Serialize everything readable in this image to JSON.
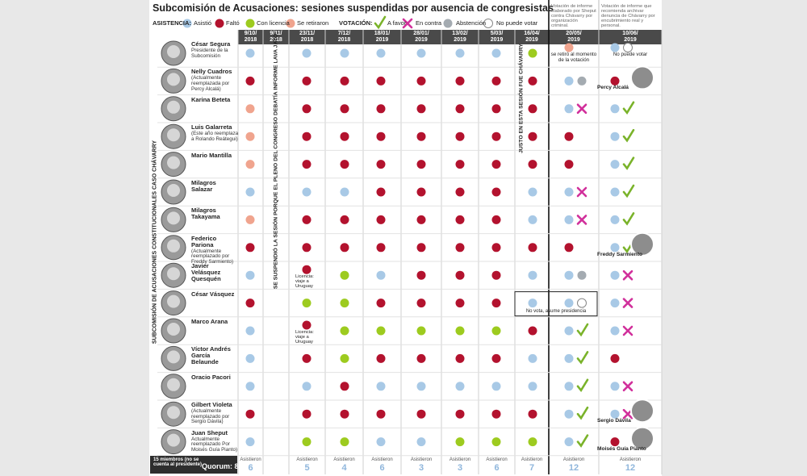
{
  "header": {
    "title": "Subcomisión de Acusaciones: sesiones suspendidas por ausencia de congresistas"
  },
  "legend": {
    "attendance_title": "ASISTENCIA:",
    "attendance": [
      {
        "label": "Asistió",
        "color": "#a8c9e6"
      },
      {
        "label": "Faltó",
        "color": "#b3122e"
      },
      {
        "label": "Con licencia",
        "color": "#9dcb1f"
      },
      {
        "label": "Se retiraron",
        "color": "#f0a48e"
      }
    ],
    "vote_title": "VOTACIÓN:",
    "vote": [
      {
        "label": "A favor",
        "color": "#7ab32a"
      },
      {
        "label": "En contra",
        "color": "#d1309b"
      },
      {
        "label": "Abstención",
        "color": "#a4abb1"
      },
      {
        "label": "No puede votar",
        "color": "#ffffff"
      }
    ]
  },
  "side_label": "SUBCOMISIÓN DE ACUSACIONES CONSTITUCIONALES CASO CHÁVARRY",
  "columns": [
    {
      "date": [
        "9/10/",
        "2018"
      ],
      "attended_label": "Asistieron",
      "attended": 6
    },
    {
      "date": [
        "9/11/",
        "2018"
      ],
      "note": "SE SUSPENDIÓ LA SESIÓN PORQUE EL PLENO DEL CONGRESO DEBATÍA INFORME LAVA JATO"
    },
    {
      "date": [
        "23/11/",
        "2018"
      ],
      "attended_label": "Asistieron",
      "attended": 5
    },
    {
      "date": [
        "7/12/",
        "2018"
      ],
      "attended_label": "Asistieron",
      "attended": 4
    },
    {
      "date": [
        "18/01/",
        "2019"
      ],
      "attended_label": "Asistieron",
      "attended": 6
    },
    {
      "date": [
        "28/01/",
        "2019"
      ],
      "attended_label": "Asistieron",
      "attended": 3
    },
    {
      "date": [
        "13/02/",
        "2019"
      ],
      "attended_label": "Asistieron",
      "attended": 3
    },
    {
      "date": [
        "5/03/",
        "2019"
      ],
      "attended_label": "Asistieron",
      "attended": 6
    },
    {
      "date": [
        "16/04/",
        "2019"
      ],
      "note": "JUSTO EN ESTA SESIÓN FUE CHÁVARRY",
      "attended_label": "Asistieron",
      "attended": 7
    },
    {
      "date": [
        "20/05/",
        "2019"
      ],
      "vote_note": "Votación de informe elaborado por Sheput contra Chávarry por organización criminal.",
      "attended_label": "Asistieron",
      "attended": 12
    },
    {
      "date": [
        "10/06/",
        "2019"
      ],
      "vote_note": "Votación de informe que recomienda archivar denuncia de Chávarry por encubrimiento real y personal.",
      "attended_label": "Asistieron",
      "attended": 12
    }
  ],
  "members": [
    {
      "name": "César Segura",
      "note": "Presidente de la Subcomisión",
      "attendance": [
        0,
        null,
        0,
        0,
        0,
        0,
        0,
        0,
        2,
        3,
        0
      ],
      "vote": [
        null,
        3
      ],
      "cell_notes": [
        {
          "col": 9,
          "text": "se retiró al momento de la votación"
        },
        {
          "col": 10,
          "text": "No puede votar"
        }
      ]
    },
    {
      "name": "Nelly Cuadros",
      "note": "(Actualmente reemplazada por Percy Alcalá)",
      "attendance": [
        1,
        null,
        1,
        1,
        1,
        1,
        1,
        1,
        1,
        0,
        1
      ],
      "vote": [
        2,
        null
      ],
      "replacement": "Percy Alcalá"
    },
    {
      "name": "Karina Beteta",
      "attendance": [
        3,
        null,
        1,
        1,
        1,
        1,
        1,
        1,
        1,
        0,
        0
      ],
      "vote": [
        1,
        0
      ]
    },
    {
      "name": "Luis Galarreta",
      "note": "(Este año reemplaza a Rolando Reátegui)",
      "attendance": [
        3,
        null,
        1,
        1,
        1,
        1,
        1,
        1,
        1,
        1,
        0
      ],
      "vote": [
        null,
        0
      ]
    },
    {
      "name": "Mario Mantilla",
      "attendance": [
        3,
        null,
        1,
        1,
        1,
        1,
        1,
        1,
        1,
        1,
        0
      ],
      "vote": [
        null,
        0
      ]
    },
    {
      "name": "Milagros Salazar",
      "attendance": [
        0,
        null,
        0,
        0,
        1,
        1,
        1,
        1,
        0,
        0,
        0
      ],
      "vote": [
        1,
        0
      ]
    },
    {
      "name": "Milagros Takayama",
      "attendance": [
        3,
        null,
        1,
        1,
        1,
        1,
        1,
        1,
        0,
        0,
        0
      ],
      "vote": [
        1,
        0
      ]
    },
    {
      "name": "Federico Pariona",
      "note": "(Actualmente reemplazado por Freddy Sarmiento)",
      "attendance": [
        1,
        null,
        1,
        1,
        1,
        1,
        1,
        1,
        1,
        1,
        0
      ],
      "vote": [
        null,
        0
      ],
      "replacement": "Freddy Sarmiento"
    },
    {
      "name": "Javier Velásquez Quesquén",
      "attendance": [
        0,
        null,
        1,
        2,
        0,
        1,
        1,
        1,
        0,
        0,
        0
      ],
      "vote": [
        2,
        1
      ],
      "cell_notes": [
        {
          "col": 2,
          "text": "Licencia: viaje a Uruguay"
        }
      ]
    },
    {
      "name": "César Vásquez",
      "attendance": [
        1,
        null,
        2,
        2,
        1,
        1,
        1,
        1,
        0,
        0,
        0
      ],
      "vote": [
        3,
        1
      ],
      "cell_notes": [
        {
          "col": 8,
          "text": "No vota, asume presidencia"
        }
      ]
    },
    {
      "name": "Marco Arana",
      "attendance": [
        0,
        null,
        1,
        2,
        2,
        2,
        2,
        2,
        1,
        0,
        0
      ],
      "vote": [
        0,
        1
      ],
      "cell_notes": [
        {
          "col": 2,
          "text": "Licencia: viaje a Uruguay"
        }
      ]
    },
    {
      "name": "Víctor Andrés García Belaunde",
      "attendance": [
        0,
        null,
        1,
        2,
        1,
        1,
        1,
        1,
        0,
        0,
        1
      ],
      "vote": [
        0,
        null
      ]
    },
    {
      "name": "Oracio Pacori",
      "attendance": [
        0,
        null,
        0,
        1,
        0,
        0,
        0,
        0,
        0,
        0,
        0
      ],
      "vote": [
        0,
        1
      ]
    },
    {
      "name": "Gilbert Violeta",
      "note": "(Actualmente reemplazado por Sergio Dávila)",
      "attendance": [
        1,
        null,
        1,
        1,
        1,
        1,
        1,
        1,
        1,
        0,
        0
      ],
      "vote": [
        0,
        1
      ],
      "replacement": "Sergio Dávila"
    },
    {
      "name": "Juan Sheput",
      "note": "Actualmente reemplazado Por Moisés Guía Pianto)",
      "attendance": [
        0,
        null,
        2,
        2,
        0,
        0,
        2,
        2,
        2,
        0,
        1
      ],
      "vote": [
        0,
        null
      ],
      "replacement": "Moisés Guía Pianto"
    }
  ],
  "footer": {
    "members_note": "15 miembros (no se cuenta al presidente)",
    "quorum": "Quorum: 8"
  }
}
